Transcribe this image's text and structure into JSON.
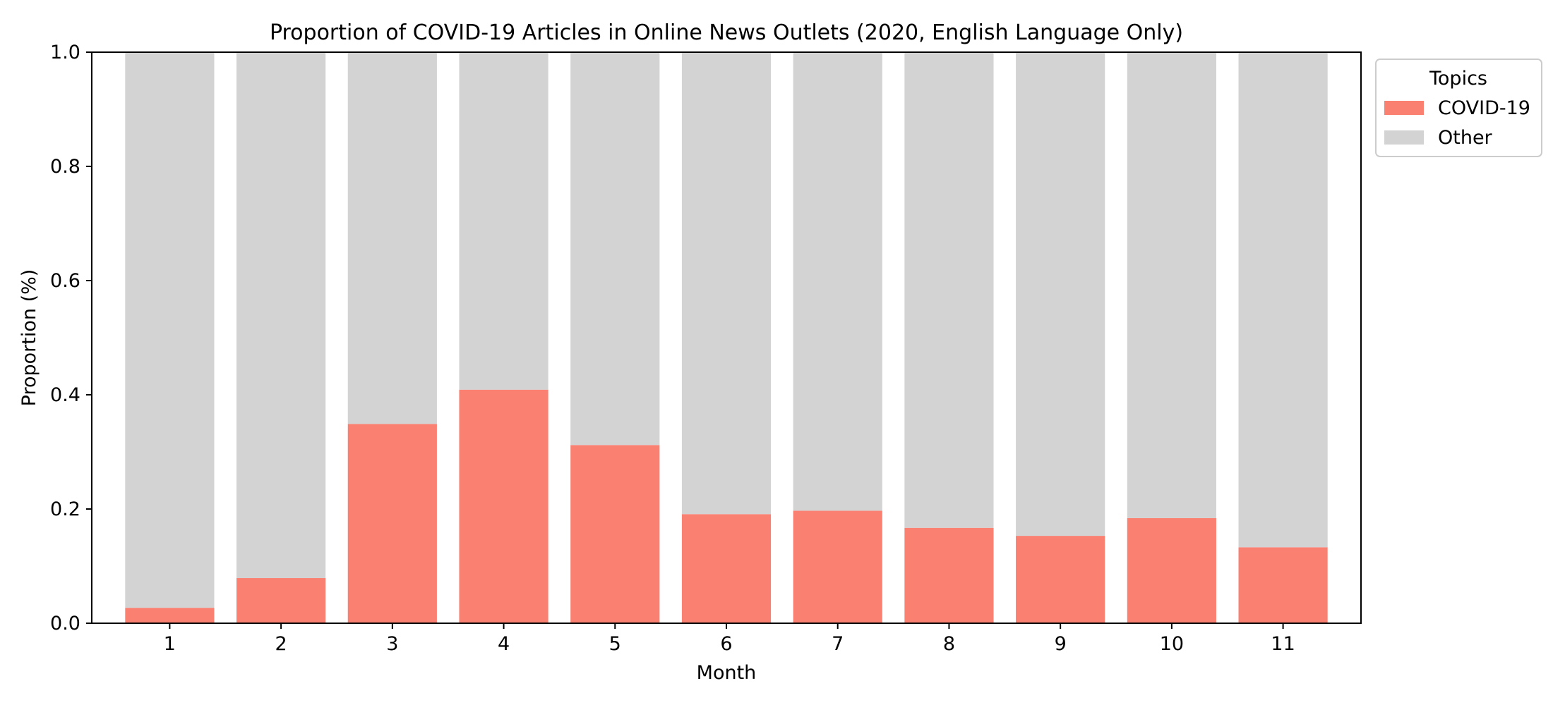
{
  "chart_data": {
    "type": "bar",
    "stacked": true,
    "title": "Proportion of COVID-19 Articles in Online News Outlets (2020, English Language Only)",
    "xlabel": "Month",
    "ylabel": "Proportion (%)",
    "ylim": [
      0,
      1.0
    ],
    "yticks": [
      "0.0",
      "0.2",
      "0.4",
      "0.6",
      "0.8",
      "1.0"
    ],
    "categories": [
      "1",
      "2",
      "3",
      "4",
      "5",
      "6",
      "7",
      "8",
      "9",
      "10",
      "11"
    ],
    "series": [
      {
        "name": "COVID-19",
        "color": "#fa8072",
        "values": [
          0.027,
          0.079,
          0.349,
          0.409,
          0.312,
          0.191,
          0.197,
          0.167,
          0.153,
          0.184,
          0.133
        ]
      },
      {
        "name": "Other",
        "color": "#d3d3d3",
        "values": [
          0.973,
          0.921,
          0.651,
          0.591,
          0.688,
          0.809,
          0.803,
          0.833,
          0.847,
          0.816,
          0.867
        ]
      }
    ],
    "legend": {
      "title": "Topics",
      "placement": "outside-top-right"
    },
    "grid": false
  }
}
